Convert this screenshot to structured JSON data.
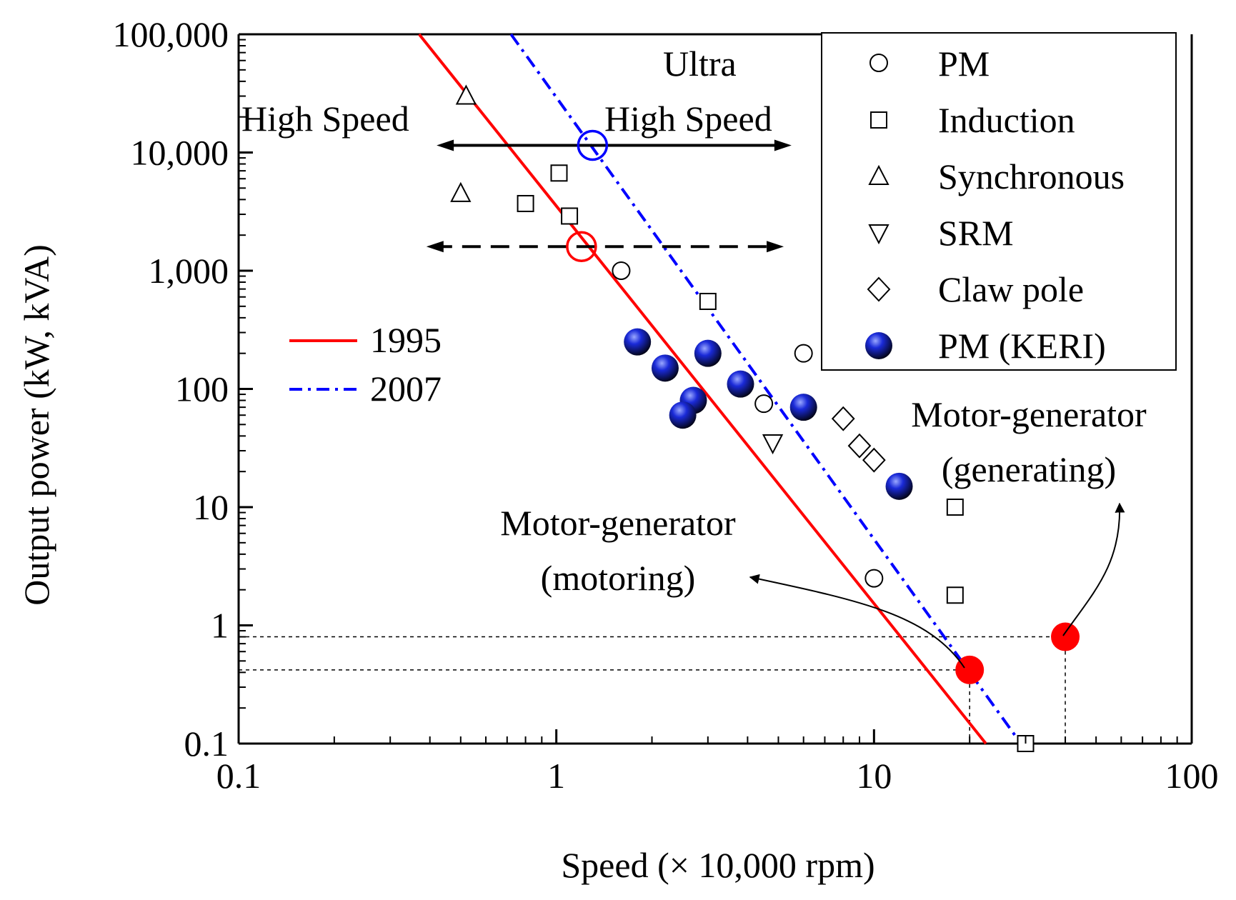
{
  "chart_data": {
    "type": "scatter",
    "xscale": "log",
    "yscale": "log",
    "xlabel": "Speed (× 10,000 rpm)",
    "ylabel": "Output power (kW, kVA)",
    "xlim": [
      0.1,
      100
    ],
    "ylim": [
      0.1,
      100000
    ],
    "xticks": [
      {
        "value": 0.1,
        "label": "0.1"
      },
      {
        "value": 1,
        "label": "1"
      },
      {
        "value": 10,
        "label": "10"
      },
      {
        "value": 100,
        "label": "100"
      }
    ],
    "yticks": [
      {
        "value": 0.1,
        "label": "0.1"
      },
      {
        "value": 1,
        "label": "1"
      },
      {
        "value": 10,
        "label": "10"
      },
      {
        "value": 100,
        "label": "100"
      },
      {
        "value": 1000,
        "label": "1,000"
      },
      {
        "value": 10000,
        "label": "10,000"
      },
      {
        "value": 100000,
        "label": "100,000"
      }
    ],
    "series": [
      {
        "name": "PM",
        "marker": "circle-open",
        "points": [
          [
            1.6,
            1000
          ],
          [
            4.5,
            75
          ],
          [
            6.0,
            200
          ],
          [
            10.0,
            2.5
          ]
        ]
      },
      {
        "name": "Induction",
        "marker": "square-open",
        "points": [
          [
            1.02,
            6700
          ],
          [
            0.8,
            3700
          ],
          [
            1.1,
            2900
          ],
          [
            3.0,
            550
          ],
          [
            18.0,
            10
          ],
          [
            18.0,
            1.8
          ],
          [
            30.0,
            0.1
          ]
        ]
      },
      {
        "name": "Synchronous",
        "marker": "triangle-up-open",
        "points": [
          [
            0.52,
            30000
          ],
          [
            0.5,
            4500
          ]
        ]
      },
      {
        "name": "SRM",
        "marker": "triangle-down-open",
        "points": [
          [
            4.8,
            35
          ]
        ]
      },
      {
        "name": "Claw pole",
        "marker": "diamond-open",
        "points": [
          [
            8.0,
            56
          ],
          [
            9.0,
            33
          ],
          [
            10.0,
            25
          ]
        ]
      },
      {
        "name": "PM (KERI)",
        "marker": "sphere-blue",
        "points": [
          [
            1.8,
            250
          ],
          [
            2.2,
            150
          ],
          [
            3.0,
            200
          ],
          [
            2.7,
            80
          ],
          [
            2.5,
            60
          ],
          [
            3.8,
            110
          ],
          [
            6.0,
            70
          ],
          [
            12.0,
            15
          ]
        ]
      }
    ],
    "trend_lines": [
      {
        "name": "1995",
        "color": "#ff0000",
        "style": "solid",
        "points": [
          [
            0.37,
            100000
          ],
          [
            22.5,
            0.1
          ]
        ]
      },
      {
        "name": "2007",
        "color": "#0000ff",
        "style": "dash-dot",
        "points": [
          [
            0.72,
            100000
          ],
          [
            29.0,
            0.1
          ]
        ]
      }
    ],
    "highlight_points": [
      {
        "name": "1995 marker",
        "color": "#ff0000",
        "x": 1.2,
        "y": 1600
      },
      {
        "name": "2007 marker",
        "color": "#0000ff",
        "x": 1.3,
        "y": 11500
      }
    ],
    "motor_generator_points": [
      {
        "name": "Motor-generator (motoring)",
        "color": "#ff0000",
        "x": 20.0,
        "y": 0.42
      },
      {
        "name": "Motor-generator (generating)",
        "color": "#ff0000",
        "x": 40.0,
        "y": 0.8
      }
    ],
    "range_arrows": [
      {
        "name": "Ultra high speed range",
        "style": "solid",
        "x1": 0.42,
        "x2": 5.5,
        "y": 11500
      },
      {
        "name": "High speed range",
        "style": "dashed",
        "x1": 0.39,
        "x2": 5.2,
        "y": 1600
      }
    ],
    "annotations": {
      "high_speed": "High Speed",
      "ultra": "Ultra",
      "ultra_high_speed": "High Speed",
      "mg_motoring_line1": "Motor-generator",
      "mg_motoring_line2": "(motoring)",
      "mg_generating_line1": "Motor-generator",
      "mg_generating_line2": "(generating)"
    },
    "legend": {
      "placement": "top-right",
      "entries": [
        "PM",
        "Induction",
        "Synchronous",
        "SRM",
        "Claw pole",
        "PM (KERI)"
      ]
    },
    "line_legend": {
      "placement": "center-left",
      "entries": [
        "1995",
        "2007"
      ]
    }
  }
}
